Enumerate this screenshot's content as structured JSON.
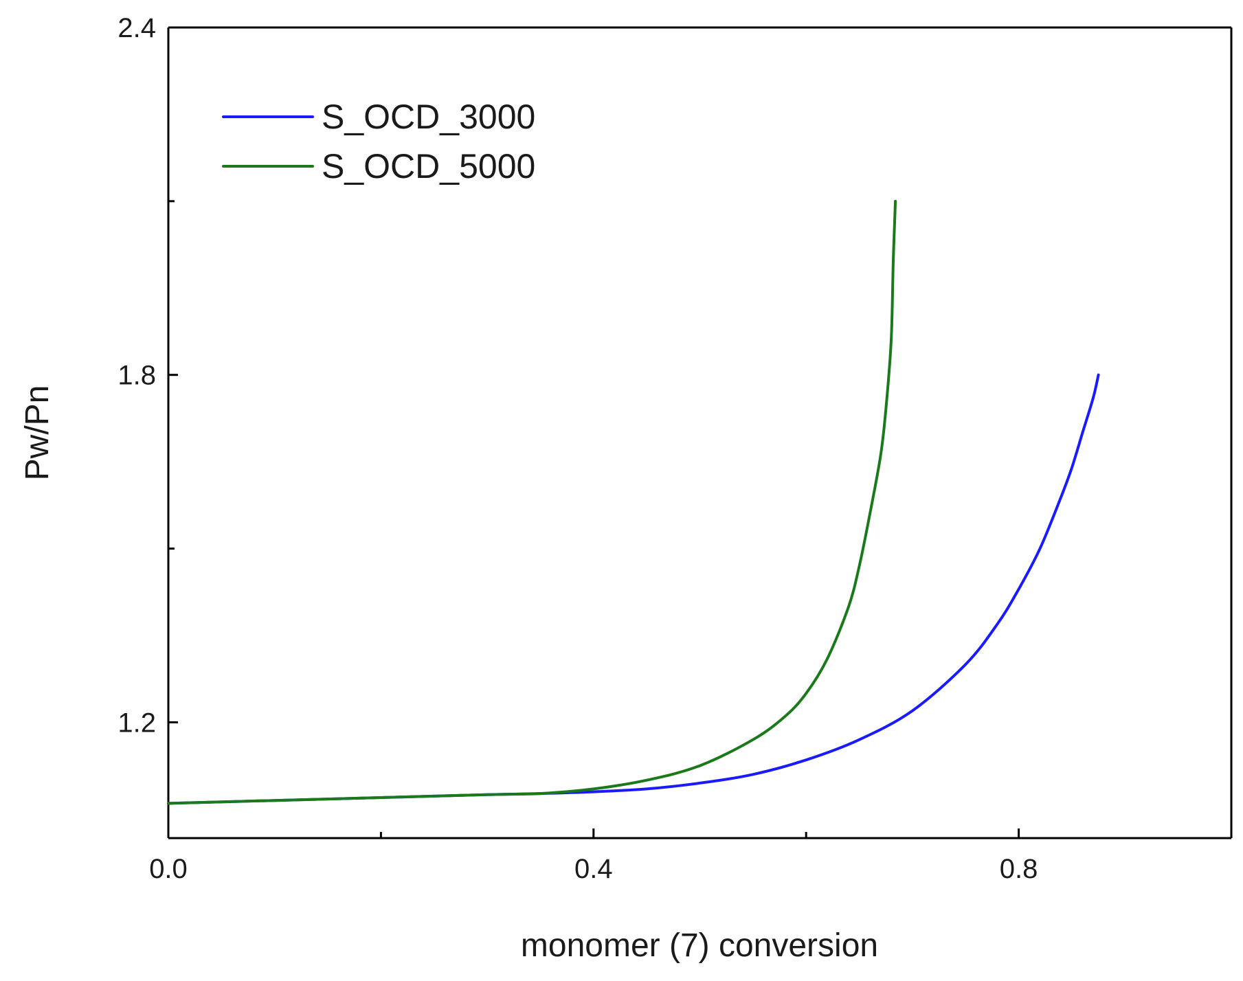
{
  "chart_data": {
    "type": "line",
    "title": "",
    "xlabel": "monomer (7) conversion",
    "ylabel": "Pw/Pn",
    "xlim": [
      0.0,
      1.0
    ],
    "ylim": [
      1.0,
      2.4
    ],
    "x_ticks": [
      0.0,
      0.4,
      0.8
    ],
    "x_tick_labels": [
      "0.0",
      "0.4",
      "0.8"
    ],
    "x_minor_ticks": [
      0.2,
      0.6
    ],
    "y_ticks": [
      1.2,
      1.8,
      2.4
    ],
    "y_tick_labels": [
      "1.2",
      "1.8",
      "2.4"
    ],
    "y_minor_ticks": [
      1.5,
      2.1
    ],
    "grid": false,
    "legend_position": "top-left",
    "series": [
      {
        "name": "S_OCD_3000",
        "color": "#1a1aff",
        "x": [
          0.0,
          0.1,
          0.2,
          0.3,
          0.35,
          0.4,
          0.45,
          0.5,
          0.55,
          0.6,
          0.65,
          0.7,
          0.75,
          0.78,
          0.8,
          0.82,
          0.84,
          0.85,
          0.86,
          0.87,
          0.875
        ],
        "y": [
          1.06,
          1.065,
          1.07,
          1.075,
          1.077,
          1.08,
          1.085,
          1.095,
          1.11,
          1.135,
          1.17,
          1.22,
          1.3,
          1.37,
          1.43,
          1.5,
          1.59,
          1.64,
          1.7,
          1.76,
          1.8
        ]
      },
      {
        "name": "S_OCD_5000",
        "color": "#1a7a1a",
        "x": [
          0.0,
          0.1,
          0.2,
          0.3,
          0.35,
          0.4,
          0.45,
          0.5,
          0.55,
          0.58,
          0.6,
          0.62,
          0.64,
          0.65,
          0.66,
          0.67,
          0.675,
          0.68,
          0.682,
          0.684
        ],
        "y": [
          1.06,
          1.065,
          1.07,
          1.075,
          1.077,
          1.085,
          1.1,
          1.125,
          1.17,
          1.21,
          1.25,
          1.31,
          1.4,
          1.47,
          1.56,
          1.66,
          1.74,
          1.86,
          2.0,
          2.1
        ]
      }
    ]
  }
}
